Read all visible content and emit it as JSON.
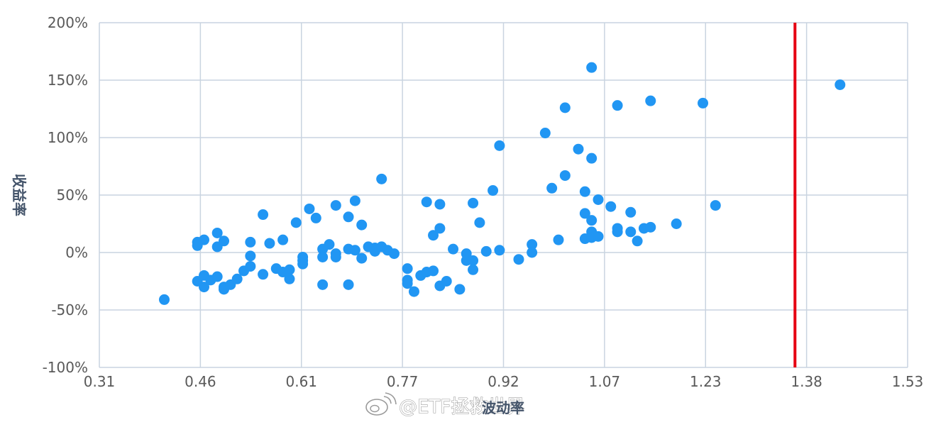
{
  "chart_data": {
    "type": "scatter",
    "title": "",
    "xlabel": "波动率",
    "ylabel": "收益率",
    "xlim": [
      0.31,
      1.53
    ],
    "ylim": [
      -100,
      200
    ],
    "x_ticks": [
      "0.31",
      "0.46",
      "0.61",
      "0.77",
      "0.92",
      "1.07",
      "1.23",
      "1.38",
      "1.53"
    ],
    "y_ticks": [
      "-100%",
      "-50%",
      "0%",
      "50%",
      "100%",
      "150%",
      "200%"
    ],
    "grid": true,
    "legend": "none",
    "colors": {
      "points": "#2196f3",
      "reference_line": "#e60012",
      "grid": "#c9d4e0",
      "tick_text": "#595959",
      "axis_title": "#44546a"
    },
    "reference_line": {
      "orientation": "vertical",
      "x": 1.36
    },
    "series": [
      {
        "points": [
          [
            0.408,
            -41
          ],
          [
            0.458,
            9
          ],
          [
            0.458,
            6
          ],
          [
            0.458,
            -25
          ],
          [
            0.468,
            11
          ],
          [
            0.468,
            -20
          ],
          [
            0.468,
            -30
          ],
          [
            0.478,
            -24
          ],
          [
            0.488,
            17
          ],
          [
            0.488,
            5
          ],
          [
            0.488,
            -21
          ],
          [
            0.498,
            10
          ],
          [
            0.498,
            -30
          ],
          [
            0.498,
            -32
          ],
          [
            0.508,
            -28
          ],
          [
            0.518,
            -23
          ],
          [
            0.528,
            -16
          ],
          [
            0.538,
            9
          ],
          [
            0.538,
            -3
          ],
          [
            0.538,
            -12
          ],
          [
            0.557,
            33
          ],
          [
            0.557,
            -19
          ],
          [
            0.567,
            8
          ],
          [
            0.577,
            -14
          ],
          [
            0.587,
            11
          ],
          [
            0.587,
            -17
          ],
          [
            0.597,
            -15
          ],
          [
            0.597,
            -23
          ],
          [
            0.607,
            26
          ],
          [
            0.617,
            -4
          ],
          [
            0.617,
            -7
          ],
          [
            0.617,
            -10
          ],
          [
            0.627,
            38
          ],
          [
            0.637,
            30
          ],
          [
            0.647,
            3
          ],
          [
            0.647,
            -4
          ],
          [
            0.647,
            -28
          ],
          [
            0.657,
            7
          ],
          [
            0.667,
            41
          ],
          [
            0.667,
            -1
          ],
          [
            0.667,
            -4
          ],
          [
            0.686,
            31
          ],
          [
            0.686,
            3
          ],
          [
            0.686,
            -28
          ],
          [
            0.696,
            45
          ],
          [
            0.696,
            2
          ],
          [
            0.706,
            24
          ],
          [
            0.706,
            -5
          ],
          [
            0.716,
            5
          ],
          [
            0.726,
            4
          ],
          [
            0.726,
            1
          ],
          [
            0.736,
            64
          ],
          [
            0.736,
            5
          ],
          [
            0.745,
            2
          ],
          [
            0.755,
            -1
          ],
          [
            0.775,
            -14
          ],
          [
            0.775,
            -24
          ],
          [
            0.775,
            -27
          ],
          [
            0.785,
            -34
          ],
          [
            0.795,
            -20
          ],
          [
            0.804,
            44
          ],
          [
            0.804,
            -17
          ],
          [
            0.814,
            15
          ],
          [
            0.814,
            -16
          ],
          [
            0.824,
            42
          ],
          [
            0.824,
            21
          ],
          [
            0.824,
            -29
          ],
          [
            0.834,
            -25
          ],
          [
            0.844,
            3
          ],
          [
            0.854,
            -32
          ],
          [
            0.864,
            -1
          ],
          [
            0.864,
            -7
          ],
          [
            0.874,
            43
          ],
          [
            0.874,
            -7
          ],
          [
            0.874,
            -15
          ],
          [
            0.884,
            26
          ],
          [
            0.894,
            1
          ],
          [
            0.904,
            54
          ],
          [
            0.914,
            93
          ],
          [
            0.914,
            2
          ],
          [
            0.943,
            -6
          ],
          [
            0.963,
            7
          ],
          [
            0.963,
            0
          ],
          [
            0.983,
            104
          ],
          [
            0.993,
            56
          ],
          [
            1.003,
            11
          ],
          [
            1.013,
            126
          ],
          [
            1.013,
            67
          ],
          [
            1.033,
            90
          ],
          [
            1.043,
            53
          ],
          [
            1.043,
            34
          ],
          [
            1.043,
            12
          ],
          [
            1.053,
            161
          ],
          [
            1.053,
            82
          ],
          [
            1.053,
            28
          ],
          [
            1.053,
            18
          ],
          [
            1.053,
            13
          ],
          [
            1.063,
            46
          ],
          [
            1.063,
            14
          ],
          [
            1.082,
            40
          ],
          [
            1.092,
            128
          ],
          [
            1.092,
            21
          ],
          [
            1.092,
            18
          ],
          [
            1.112,
            35
          ],
          [
            1.112,
            18
          ],
          [
            1.122,
            10
          ],
          [
            1.132,
            21
          ],
          [
            1.142,
            132
          ],
          [
            1.142,
            22
          ],
          [
            1.181,
            25
          ],
          [
            1.221,
            130
          ],
          [
            1.24,
            41
          ],
          [
            1.428,
            146
          ]
        ]
      }
    ]
  },
  "watermark": "@ETF拯救世界"
}
